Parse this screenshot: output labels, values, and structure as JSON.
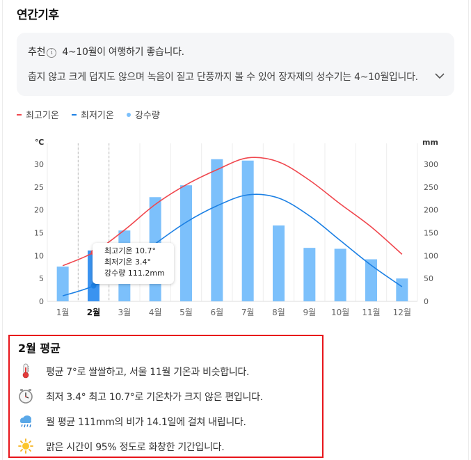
{
  "section_title": "연간기후",
  "recommendation": {
    "tag": "추천",
    "info_icon": "info-icon",
    "headline": "4~10월이 여행하기 좋습니다.",
    "description": "춥지 않고 크게 덥지도 않으며 녹음이 짙고 단풍까지 볼 수 있어 장자제의 성수기는 4~10월입니다.",
    "expand_icon": "chevron-down-icon"
  },
  "legend": [
    {
      "label": "최고기온",
      "color": "#f0474e",
      "marker": "dash"
    },
    {
      "label": "최저기온",
      "color": "#1c80e4",
      "marker": "dash"
    },
    {
      "label": "강수량",
      "color": "#7cc0fb",
      "marker": "dot"
    }
  ],
  "chart_data": {
    "type": "bar+line",
    "categories": [
      "1월",
      "2월",
      "3월",
      "4월",
      "5월",
      "6월",
      "7월",
      "8월",
      "9월",
      "10월",
      "11월",
      "12월"
    ],
    "selected_index": 1,
    "y_left_unit": "℃",
    "y_right_unit": "mm",
    "y_left_ticks": [
      0,
      5,
      10,
      15,
      20,
      25,
      30
    ],
    "y_right_ticks": [
      0,
      50,
      100,
      150,
      200,
      250,
      300
    ],
    "y_left_range": [
      0,
      30
    ],
    "y_right_range": [
      0,
      300
    ],
    "series": [
      {
        "name": "최고기온",
        "axis": "left",
        "kind": "line",
        "color": "#f0474e",
        "values": [
          7.8,
          10.7,
          15.6,
          21.2,
          25.5,
          28.8,
          31.4,
          30.5,
          26.5,
          21.3,
          16.3,
          10.3
        ]
      },
      {
        "name": "최저기온",
        "axis": "left",
        "kind": "line",
        "color": "#1c80e4",
        "values": [
          1.2,
          3.4,
          7.5,
          12.6,
          17.3,
          20.9,
          23.3,
          22.6,
          18.7,
          13.3,
          7.9,
          3.2
        ]
      },
      {
        "name": "강수량",
        "axis": "right",
        "kind": "bar",
        "color": "#7cc0fb",
        "selected_color": "#3a93f0",
        "values": [
          76,
          111.2,
          155,
          228,
          254,
          311,
          308,
          166,
          117,
          115,
          92,
          50
        ]
      }
    ],
    "tooltip": {
      "lines": [
        "최고기온 10.7°",
        "최저기온 3.4°",
        "강수량 111.2mm"
      ]
    }
  },
  "summary": {
    "title": "2월 평균",
    "items": [
      {
        "icon": "thermometer-icon",
        "text": "평균 7°로 쌀쌀하고, 서울 11월 기온과 비슷합니다."
      },
      {
        "icon": "clock-icon",
        "text": "최저 3.4° 최고 10.7°로 기온차가 크지 않은 편입니다."
      },
      {
        "icon": "rain-cloud-icon",
        "text": "월 평균 111mm의 비가 14.1일에 걸쳐 내립니다."
      },
      {
        "icon": "sun-icon",
        "text": "맑은 시간이 95% 정도로 화창한 기간입니다."
      }
    ]
  }
}
